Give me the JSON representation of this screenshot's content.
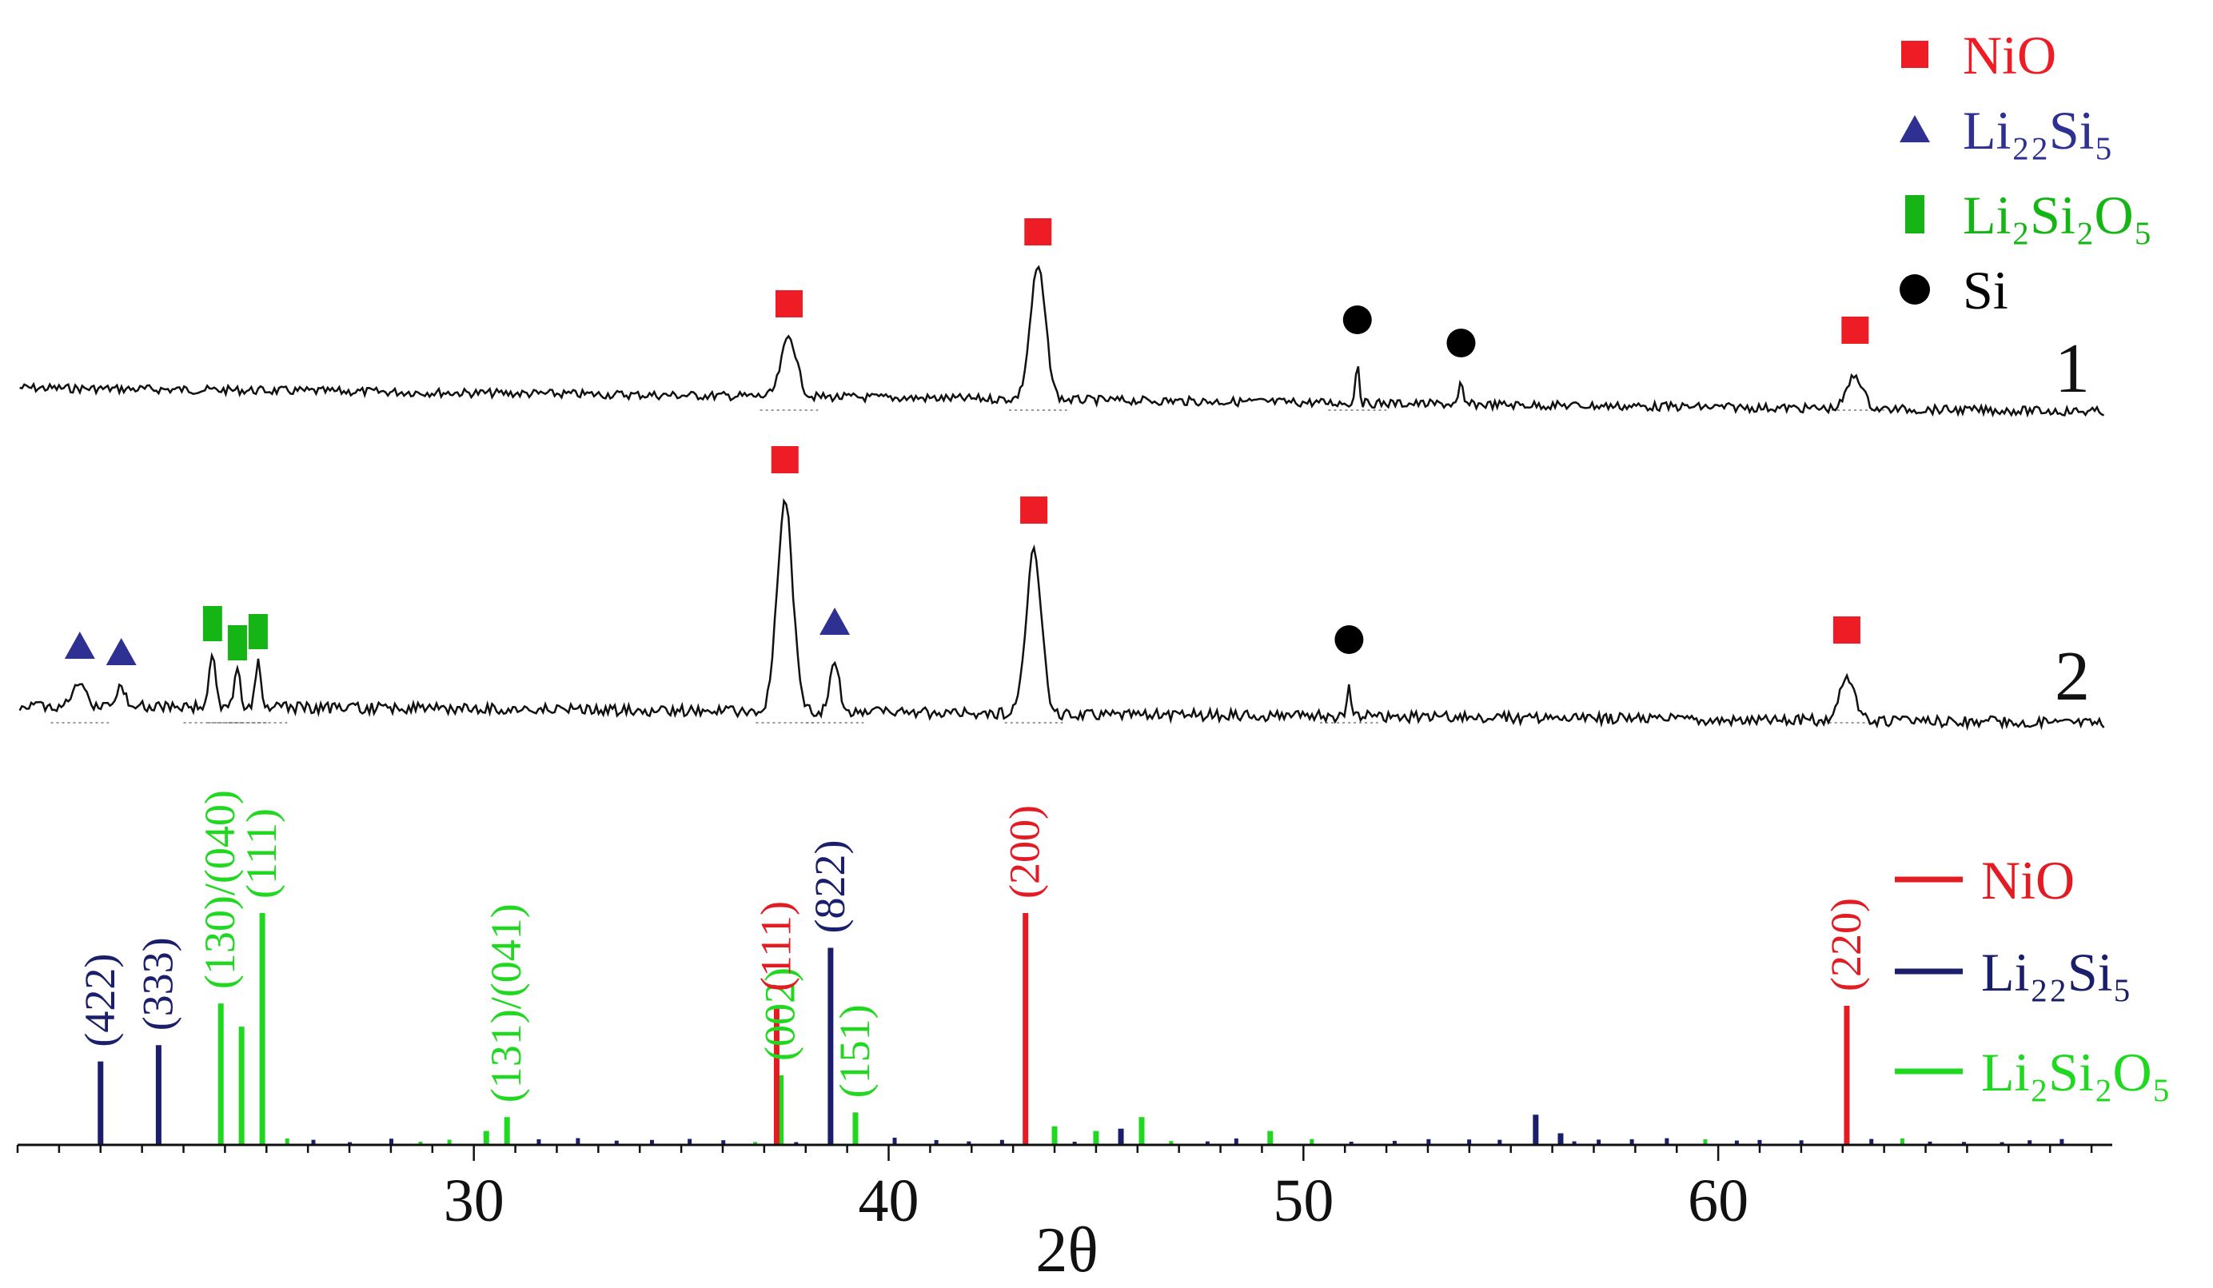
{
  "chart_data": {
    "type": "line",
    "x_axis": {
      "label": "2θ",
      "range": [
        19.0,
        69.5
      ],
      "major_ticks": [
        30,
        40,
        50,
        60
      ],
      "minor_step": 1
    },
    "marker_legend": [
      {
        "key": "NiO",
        "label": "NiO",
        "color": "#ee1d25",
        "marker": "square"
      },
      {
        "key": "Li22Si5",
        "label": "Li₂₂Si₅",
        "color": "#2e3191",
        "marker": "triangle"
      },
      {
        "key": "Li2Si2O5",
        "label": "Li₂Si₂O₅",
        "color": "#16b516",
        "marker": "bar"
      },
      {
        "key": "Si",
        "label": "Si",
        "color": "#000000",
        "marker": "circle"
      }
    ],
    "line_legend": [
      {
        "key": "NiO",
        "label": "NiO",
        "color": "#e31b23"
      },
      {
        "key": "Li22Si5",
        "label": "Li₂₂Si₅",
        "color": "#1b1f6b"
      },
      {
        "key": "Li2Si2O5",
        "label": "Li₂Si₂O₅",
        "color": "#21d821"
      }
    ],
    "series": [
      {
        "name": "1",
        "peaks": [
          {
            "x": 37.6,
            "phase": "NiO"
          },
          {
            "x": 43.6,
            "phase": "NiO"
          },
          {
            "x": 51.3,
            "phase": "Si"
          },
          {
            "x": 53.8,
            "phase": "Si"
          },
          {
            "x": 63.3,
            "phase": "NiO"
          }
        ]
      },
      {
        "name": "2",
        "peaks": [
          {
            "x": 20.5,
            "phase": "Li22Si5"
          },
          {
            "x": 21.5,
            "phase": "Li22Si5"
          },
          {
            "x": 23.7,
            "phase": "Li2Si2O5"
          },
          {
            "x": 24.3,
            "phase": "Li2Si2O5"
          },
          {
            "x": 24.8,
            "phase": "Li2Si2O5"
          },
          {
            "x": 37.5,
            "phase": "NiO"
          },
          {
            "x": 38.7,
            "phase": "Li22Si5"
          },
          {
            "x": 43.5,
            "phase": "NiO"
          },
          {
            "x": 51.1,
            "phase": "Si"
          },
          {
            "x": 63.1,
            "phase": "NiO"
          }
        ]
      }
    ],
    "reference_lines": [
      {
        "phase": "Li22Si5",
        "x": 21.0,
        "intensity": 0.36,
        "label": "(422)"
      },
      {
        "phase": "Li22Si5",
        "x": 22.4,
        "intensity": 0.43,
        "label": "(333)"
      },
      {
        "phase": "Li2Si2O5",
        "x": 23.9,
        "intensity": 0.61,
        "label": "(130)/(040)"
      },
      {
        "phase": "Li2Si2O5",
        "x": 24.4,
        "intensity": 0.51
      },
      {
        "phase": "Li2Si2O5",
        "x": 24.9,
        "intensity": 1.0,
        "label": "(111)"
      },
      {
        "phase": "Li2Si2O5",
        "x": 30.3,
        "intensity": 0.06
      },
      {
        "phase": "Li2Si2O5",
        "x": 30.8,
        "intensity": 0.12,
        "label": "(131)/(041)"
      },
      {
        "phase": "Li2Si2O5",
        "x": 37.4,
        "intensity": 0.3,
        "label": "(002)"
      },
      {
        "phase": "NiO",
        "x": 37.3,
        "intensity": 0.6,
        "label": "(111)"
      },
      {
        "phase": "Li22Si5",
        "x": 38.6,
        "intensity": 0.85,
        "label": "(822)"
      },
      {
        "phase": "Li2Si2O5",
        "x": 39.2,
        "intensity": 0.14,
        "label": "(151)"
      },
      {
        "phase": "NiO",
        "x": 43.3,
        "intensity": 1.0,
        "label": "(200)"
      },
      {
        "phase": "Li2Si2O5",
        "x": 44.0,
        "intensity": 0.08
      },
      {
        "phase": "Li2Si2O5",
        "x": 45.0,
        "intensity": 0.06
      },
      {
        "phase": "Li22Si5",
        "x": 45.6,
        "intensity": 0.07
      },
      {
        "phase": "Li2Si2O5",
        "x": 46.1,
        "intensity": 0.12
      },
      {
        "phase": "Li2Si2O5",
        "x": 49.2,
        "intensity": 0.06
      },
      {
        "phase": "Li22Si5",
        "x": 55.6,
        "intensity": 0.13
      },
      {
        "phase": "Li22Si5",
        "x": 56.2,
        "intensity": 0.05
      },
      {
        "phase": "NiO",
        "x": 63.1,
        "intensity": 0.6,
        "label": "(220)"
      }
    ]
  }
}
